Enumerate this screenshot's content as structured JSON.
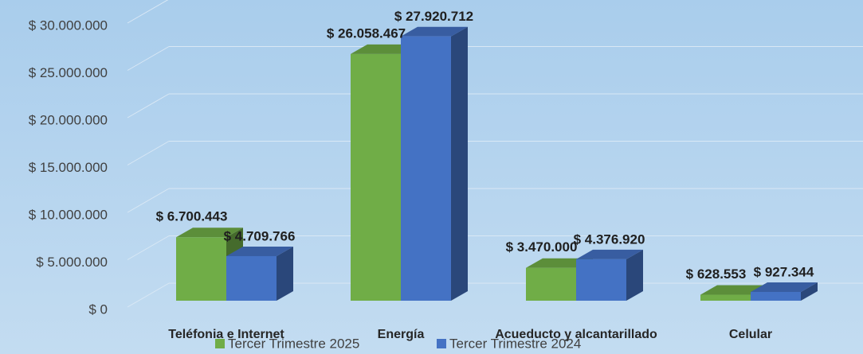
{
  "chart_data": {
    "type": "bar3d",
    "categories": [
      "Teléfonia e Internet",
      "Energía",
      "Acueducto y alcantarillado",
      "Celular"
    ],
    "series": [
      {
        "name": "Tercer Trimestre 2025",
        "color": "#70ad47",
        "values": [
          6700443,
          26058467,
          3470000,
          628553
        ],
        "value_labels": [
          "$ 6.700.443",
          "$ 26.058.467",
          "$ 3.470.000",
          "$ 628.553"
        ]
      },
      {
        "name": "Tercer Trimestre 2024",
        "color": "#4472c4",
        "values": [
          4709766,
          27920712,
          4376920,
          927344
        ],
        "value_labels": [
          "$ 4.709.766",
          "$ 27.920.712",
          "$ 4.376.920",
          "$ 927.344"
        ]
      }
    ],
    "ylim": [
      0,
      30000000
    ],
    "yticks": [
      {
        "value": 0,
        "label": "$ 0"
      },
      {
        "value": 5000000,
        "label": "$ 5.000.000"
      },
      {
        "value": 10000000,
        "label": "$ 10.000.000"
      },
      {
        "value": 15000000,
        "label": "$ 15.000.000"
      },
      {
        "value": 20000000,
        "label": "$ 20.000.000"
      },
      {
        "value": 25000000,
        "label": "$ 25.000.000"
      },
      {
        "value": 30000000,
        "label": "$ 30.000.000"
      }
    ],
    "grid": true,
    "legend": "bottom"
  }
}
